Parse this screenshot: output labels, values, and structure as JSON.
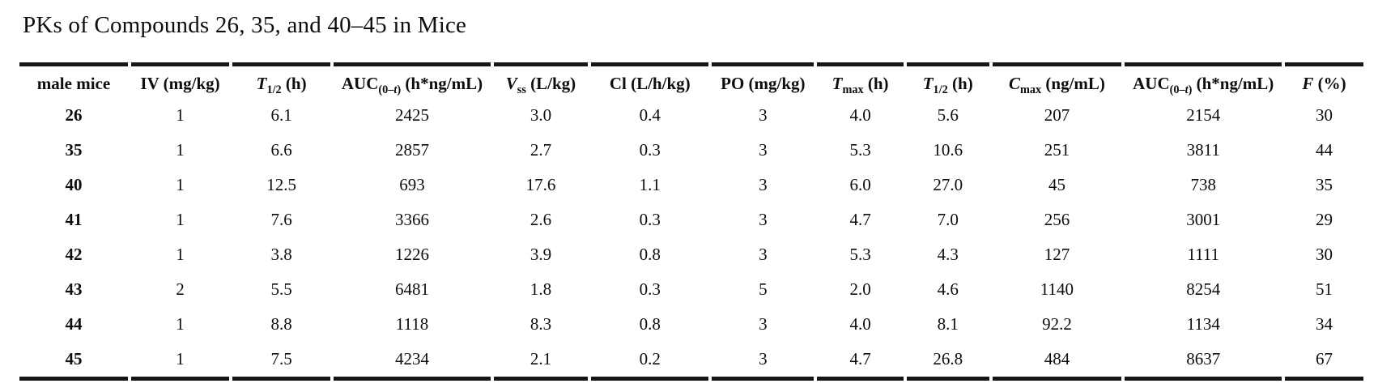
{
  "title": "PKs of Compounds 26, 35, and 40–45 in Mice",
  "colors": {
    "text": "#0d0d0d",
    "rule": "#161616",
    "background": "#ffffff"
  },
  "table": {
    "headers": [
      {
        "segments": [
          {
            "t": "male mice"
          }
        ]
      },
      {
        "segments": [
          {
            "t": "IV (mg/kg)"
          }
        ]
      },
      {
        "segments": [
          {
            "t": "T",
            "s": "i"
          },
          {
            "t": "1/2",
            "s": "sub"
          },
          {
            "t": " (h)"
          }
        ]
      },
      {
        "segments": [
          {
            "t": "AUC"
          },
          {
            "t": "(0–",
            "s": "sub"
          },
          {
            "t": "t",
            "s": "subi"
          },
          {
            "t": ")",
            "s": "sub"
          },
          {
            "t": " (h*ng/mL)"
          }
        ]
      },
      {
        "segments": [
          {
            "t": "V",
            "s": "i"
          },
          {
            "t": "ss",
            "s": "sub"
          },
          {
            "t": " (L/kg)"
          }
        ]
      },
      {
        "segments": [
          {
            "t": "Cl (L/h/kg)"
          }
        ]
      },
      {
        "segments": [
          {
            "t": "PO (mg/kg)"
          }
        ]
      },
      {
        "segments": [
          {
            "t": "T",
            "s": "i"
          },
          {
            "t": "max",
            "s": "sub"
          },
          {
            "t": " (h)"
          }
        ]
      },
      {
        "segments": [
          {
            "t": "T",
            "s": "i"
          },
          {
            "t": "1/2",
            "s": "sub"
          },
          {
            "t": " (h)"
          }
        ]
      },
      {
        "segments": [
          {
            "t": "C",
            "s": "i"
          },
          {
            "t": "max",
            "s": "sub"
          },
          {
            "t": " (ng/mL)"
          }
        ]
      },
      {
        "segments": [
          {
            "t": "AUC"
          },
          {
            "t": "(0–",
            "s": "sub"
          },
          {
            "t": "t",
            "s": "subi"
          },
          {
            "t": ")",
            "s": "sub"
          },
          {
            "t": " (h*ng/mL)"
          }
        ]
      },
      {
        "segments": [
          {
            "t": "F",
            "s": "i"
          },
          {
            "t": " (%)"
          }
        ]
      }
    ],
    "rows": [
      {
        "compound": "26",
        "values": [
          "1",
          "6.1",
          "2425",
          "3.0",
          "0.4",
          "3",
          "4.0",
          "5.6",
          "207",
          "2154",
          "30"
        ]
      },
      {
        "compound": "35",
        "values": [
          "1",
          "6.6",
          "2857",
          "2.7",
          "0.3",
          "3",
          "5.3",
          "10.6",
          "251",
          "3811",
          "44"
        ]
      },
      {
        "compound": "40",
        "values": [
          "1",
          "12.5",
          "693",
          "17.6",
          "1.1",
          "3",
          "6.0",
          "27.0",
          "45",
          "738",
          "35"
        ]
      },
      {
        "compound": "41",
        "values": [
          "1",
          "7.6",
          "3366",
          "2.6",
          "0.3",
          "3",
          "4.7",
          "7.0",
          "256",
          "3001",
          "29"
        ]
      },
      {
        "compound": "42",
        "values": [
          "1",
          "3.8",
          "1226",
          "3.9",
          "0.8",
          "3",
          "5.3",
          "4.3",
          "127",
          "1111",
          "30"
        ]
      },
      {
        "compound": "43",
        "values": [
          "2",
          "5.5",
          "6481",
          "1.8",
          "0.3",
          "5",
          "2.0",
          "4.6",
          "1140",
          "8254",
          "51"
        ]
      },
      {
        "compound": "44",
        "values": [
          "1",
          "8.8",
          "1118",
          "8.3",
          "0.8",
          "3",
          "4.0",
          "8.1",
          "92.2",
          "1134",
          "34"
        ]
      },
      {
        "compound": "45",
        "values": [
          "1",
          "7.5",
          "4234",
          "2.1",
          "0.2",
          "3",
          "4.7",
          "26.8",
          "484",
          "8637",
          "67"
        ]
      }
    ]
  }
}
